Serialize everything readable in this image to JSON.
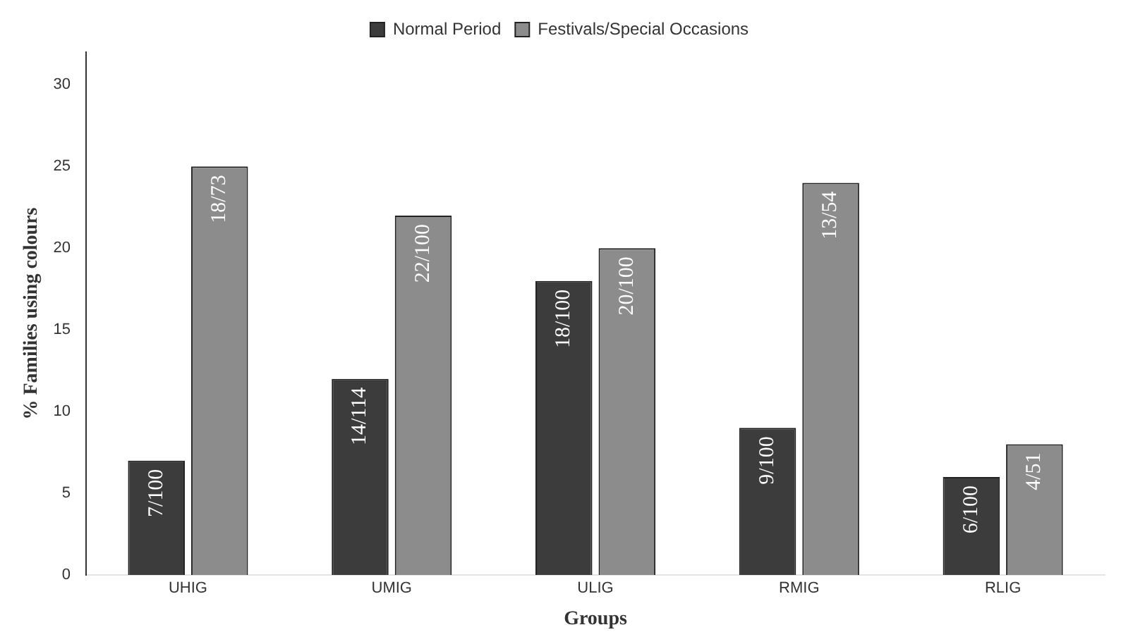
{
  "chart_data": {
    "type": "bar",
    "xlabel": "Groups",
    "ylabel": "% Families using colours",
    "categories": [
      "UHIG",
      "UMIG",
      "ULIG",
      "RMIG",
      "RLIG"
    ],
    "series": [
      {
        "name": "Normal Period",
        "color": "#3c3c3c",
        "values": [
          7,
          12,
          18,
          9,
          6
        ],
        "value_labels": [
          "7/100",
          "14/114",
          "18/100",
          "9/100",
          "6/100"
        ]
      },
      {
        "name": "Festivals/Special Occasions",
        "color": "#8c8c8c",
        "values": [
          25,
          22,
          20,
          24,
          8
        ],
        "value_labels": [
          "18/73",
          "22/100",
          "20/100",
          "13/54",
          "4/51"
        ]
      }
    ],
    "ylim": [
      0,
      32
    ],
    "yticks": [
      0,
      5,
      10,
      15,
      20,
      25,
      30
    ],
    "grid": false,
    "legend": "top"
  }
}
